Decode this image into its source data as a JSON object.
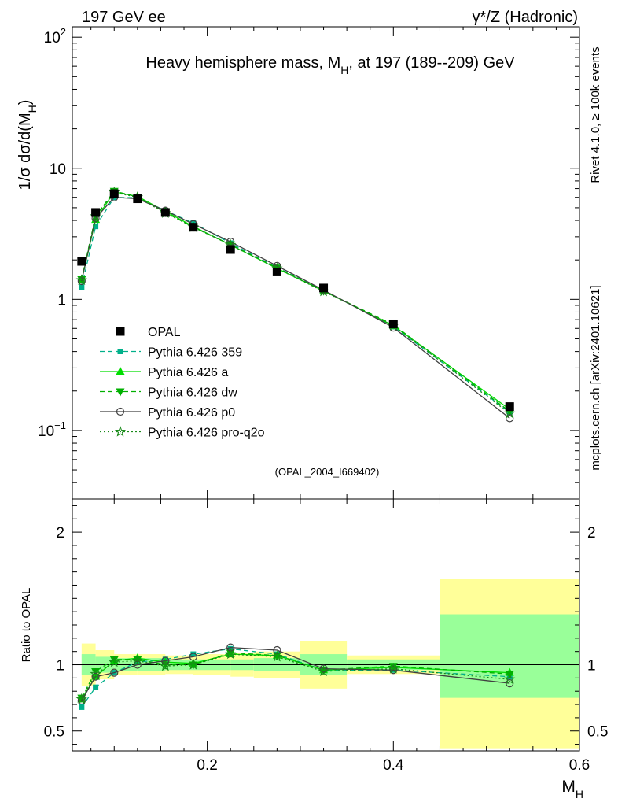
{
  "header": {
    "left": "197 GeV ee",
    "right": "γ*/Z (Hadronic)"
  },
  "side_labels": {
    "rivet": "Rivet 4.1.0, ≥ 100k events",
    "mcplots": "mcplots.cern.ch [arXiv:2401.10621]"
  },
  "colors": {
    "data": "#000000",
    "band_inner": "#99ff99",
    "band_outer": "#ffff99",
    "p359": "#00b08a",
    "pa": "#00dd00",
    "pdw": "#00b000",
    "pp0": "#404040",
    "pq2o": "#1a8a1a"
  },
  "chart_data": [
    {
      "type": "line",
      "title": "Heavy hemisphere mass, M",
      "title_sub": "H",
      "title_tail": ", at 197 (189--209) GeV",
      "ylabel_prefix": "1/σ  dσ/d(M",
      "ylabel_sub": "H",
      "ylabel_suffix": ")",
      "yscale": "log",
      "ylim": [
        0.03,
        120
      ],
      "xlim": [
        0.055,
        0.6
      ],
      "ytick_labels": [
        "10",
        "1"
      ],
      "ytick_values": [
        10,
        1
      ],
      "ytick_sup": [
        {
          "base": "10",
          "exp": "2",
          "value": 100
        },
        {
          "base": "10",
          "exp": "−1",
          "value": 0.1
        }
      ],
      "watermark": "(OPAL_2004_I669402)",
      "legend_position": "left-middle",
      "x": [
        0.065,
        0.08,
        0.1,
        0.125,
        0.155,
        0.185,
        0.225,
        0.275,
        0.325,
        0.4,
        0.525
      ],
      "series": [
        {
          "name": "OPAL",
          "key": "data",
          "values": [
            1.95,
            4.6,
            6.4,
            5.85,
            4.6,
            3.55,
            2.4,
            1.62,
            1.22,
            0.65,
            0.152
          ]
        },
        {
          "name": "Pythia 6.426 359",
          "key": "p359",
          "values": [
            1.24,
            3.6,
            6.0,
            5.95,
            4.75,
            3.82,
            2.68,
            1.75,
            1.17,
            0.62,
            0.138
          ]
        },
        {
          "name": "Pythia 6.426 a",
          "key": "pa",
          "values": [
            1.4,
            4.05,
            6.6,
            6.1,
            4.7,
            3.6,
            2.6,
            1.72,
            1.16,
            0.63,
            0.145
          ]
        },
        {
          "name": "Pythia 6.426 dw",
          "key": "pdw",
          "values": [
            1.42,
            4.3,
            6.7,
            6.05,
            4.6,
            3.55,
            2.62,
            1.74,
            1.16,
            0.64,
            0.14
          ]
        },
        {
          "name": "Pythia 6.426 p0",
          "key": "pp0",
          "values": [
            1.38,
            4.15,
            6.0,
            5.85,
            4.75,
            3.75,
            2.75,
            1.8,
            1.18,
            0.61,
            0.124
          ]
        },
        {
          "name": "Pythia 6.426 pro-q2o",
          "key": "pq2o",
          "values": [
            1.4,
            4.3,
            6.55,
            6.0,
            4.55,
            3.55,
            2.6,
            1.72,
            1.15,
            0.63,
            0.135
          ]
        }
      ]
    },
    {
      "type": "line",
      "ylabel": "Ratio to OPAL",
      "xlabel": "M",
      "xlabel_sub": "H",
      "ylim": [
        0.35,
        2.25
      ],
      "xlim": [
        0.055,
        0.6
      ],
      "ytick_labels": [
        "2",
        "1",
        "0.5"
      ],
      "ytick_values": [
        2,
        1,
        0.5
      ],
      "xtick_labels": [
        "0.2",
        "0.4",
        "0.6"
      ],
      "xtick_values": [
        0.2,
        0.4,
        0.6
      ],
      "bins": [
        {
          "lo": 0.065,
          "hi": 0.08,
          "inner": [
            0.92,
            1.08
          ],
          "outer": [
            0.84,
            1.16
          ]
        },
        {
          "lo": 0.08,
          "hi": 0.1,
          "inner": [
            0.94,
            1.06
          ],
          "outer": [
            0.89,
            1.11
          ]
        },
        {
          "lo": 0.1,
          "hi": 0.125,
          "inner": [
            0.95,
            1.05
          ],
          "outer": [
            0.92,
            1.08
          ]
        },
        {
          "lo": 0.125,
          "hi": 0.155,
          "inner": [
            0.95,
            1.05
          ],
          "outer": [
            0.92,
            1.08
          ]
        },
        {
          "lo": 0.155,
          "hi": 0.185,
          "inner": [
            0.96,
            1.04
          ],
          "outer": [
            0.93,
            1.07
          ]
        },
        {
          "lo": 0.185,
          "hi": 0.225,
          "inner": [
            0.96,
            1.04
          ],
          "outer": [
            0.92,
            1.08
          ]
        },
        {
          "lo": 0.225,
          "hi": 0.25,
          "inner": [
            0.96,
            1.04
          ],
          "outer": [
            0.91,
            1.09
          ]
        },
        {
          "lo": 0.25,
          "hi": 0.3,
          "inner": [
            0.95,
            1.05
          ],
          "outer": [
            0.9,
            1.1
          ]
        },
        {
          "lo": 0.3,
          "hi": 0.35,
          "inner": [
            0.92,
            1.08
          ],
          "outer": [
            0.82,
            1.18
          ]
        },
        {
          "lo": 0.35,
          "hi": 0.45,
          "inner": [
            0.96,
            1.04
          ],
          "outer": [
            0.93,
            1.07
          ]
        },
        {
          "lo": 0.45,
          "hi": 0.6,
          "inner": [
            0.75,
            1.38
          ],
          "outer": [
            0.37,
            1.65
          ]
        }
      ],
      "x": [
        0.065,
        0.08,
        0.1,
        0.125,
        0.155,
        0.185,
        0.225,
        0.275,
        0.325,
        0.4,
        0.525
      ],
      "series": [
        {
          "name": "Pythia 6.426 359",
          "key": "p359",
          "values": [
            0.68,
            0.83,
            0.94,
            1.02,
            1.04,
            1.08,
            1.12,
            1.08,
            0.96,
            0.96,
            0.91
          ]
        },
        {
          "name": "Pythia 6.426 a",
          "key": "pa",
          "values": [
            0.74,
            0.91,
            1.03,
            1.05,
            1.02,
            1.01,
            1.08,
            1.07,
            0.96,
            0.98,
            0.94
          ]
        },
        {
          "name": "Pythia 6.426 dw",
          "key": "pdw",
          "values": [
            0.75,
            0.95,
            1.04,
            1.04,
            1.0,
            1.0,
            1.09,
            1.07,
            0.96,
            0.99,
            0.93
          ]
        },
        {
          "name": "Pythia 6.426 p0",
          "key": "pp0",
          "values": [
            0.73,
            0.91,
            0.94,
            1.0,
            1.03,
            1.06,
            1.13,
            1.11,
            0.97,
            0.96,
            0.86
          ]
        },
        {
          "name": "Pythia 6.426 pro-q2o",
          "key": "pq2o",
          "values": [
            0.74,
            0.93,
            1.02,
            1.03,
            0.99,
            1.0,
            1.08,
            1.06,
            0.95,
            0.97,
            0.89
          ]
        }
      ]
    }
  ]
}
